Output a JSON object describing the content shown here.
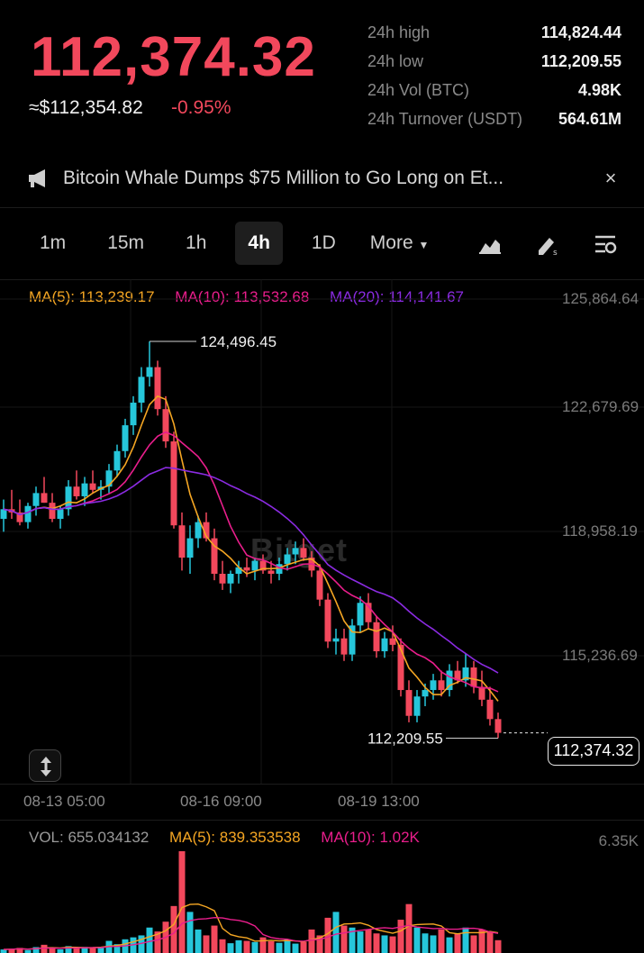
{
  "header": {
    "last_price": "112,374.32",
    "fiat_price": "≈$112,354.82",
    "change_pct": "-0.95%",
    "stats": [
      {
        "label": "24h high",
        "value": "114,824.44"
      },
      {
        "label": "24h low",
        "value": "112,209.55"
      },
      {
        "label": "24h Vol (BTC)",
        "value": "4.98K"
      },
      {
        "label": "24h Turnover (USDT)",
        "value": "564.61M"
      }
    ]
  },
  "news": {
    "text": "Bitcoin Whale Dumps $75 Million to Go Long on Et...",
    "close": "×"
  },
  "intervals": {
    "items": [
      "1m",
      "15m",
      "1h",
      "4h",
      "1D"
    ],
    "active": "4h",
    "more": "More"
  },
  "indicators": {
    "ma5": "MA(5): 113,239.17",
    "ma10": "MA(10): 113,532.68",
    "ma20": "MA(20): 114,141.67",
    "vol": "VOL: 655.034132",
    "vol_ma5": "MA(5): 839.353538",
    "vol_ma10": "MA(10): 1.02K",
    "vol_max": "6.35K"
  },
  "colors": {
    "up": "#26c6da",
    "down": "#f2485c",
    "ma5": "#f5a623",
    "ma10": "#e91e8c",
    "ma20": "#8b2be2"
  },
  "watermark": "Bitget",
  "chart_data": {
    "type": "candlestick",
    "y_axis_ticks": [
      "125,864.64",
      "122,679.69",
      "118,958.19",
      "115,236.69"
    ],
    "x_axis_ticks": [
      "08-13 05:00",
      "08-16 09:00",
      "08-19 13:00"
    ],
    "ylim": [
      110800,
      125864.64
    ],
    "high_marker": "124,496.45",
    "low_marker": "112,209.55",
    "current_price": "112,374.32",
    "current_value": 112374.32,
    "candles": [
      [
        119000,
        119600,
        118600,
        119300
      ],
      [
        119300,
        119900,
        119000,
        119200
      ],
      [
        119200,
        119600,
        118800,
        118900
      ],
      [
        118900,
        119500,
        118700,
        119400
      ],
      [
        119400,
        120000,
        119100,
        119800
      ],
      [
        119800,
        120300,
        119500,
        119500
      ],
      [
        119500,
        119800,
        118900,
        119000
      ],
      [
        119000,
        119400,
        118700,
        119300
      ],
      [
        119300,
        120200,
        119100,
        120000
      ],
      [
        120000,
        120500,
        119600,
        119700
      ],
      [
        119700,
        120300,
        119400,
        120100
      ],
      [
        120100,
        120500,
        119800,
        119900
      ],
      [
        119900,
        120200,
        119600,
        120000
      ],
      [
        120000,
        120700,
        119800,
        120500
      ],
      [
        120500,
        121300,
        120300,
        121100
      ],
      [
        121100,
        122100,
        120900,
        121900
      ],
      [
        121900,
        122800,
        121600,
        122600
      ],
      [
        122600,
        123700,
        122300,
        123400
      ],
      [
        123400,
        124496,
        123100,
        123700
      ],
      [
        123700,
        123900,
        122200,
        122400
      ],
      [
        122400,
        122800,
        121200,
        121400
      ],
      [
        121400,
        121700,
        118700,
        118800
      ],
      [
        118800,
        119200,
        117400,
        117800
      ],
      [
        117800,
        118800,
        117300,
        118400
      ],
      [
        118400,
        119100,
        118100,
        118900
      ],
      [
        118900,
        119200,
        118300,
        118400
      ],
      [
        118400,
        118700,
        117100,
        117300
      ],
      [
        117300,
        117700,
        116800,
        117000
      ],
      [
        117000,
        117400,
        116700,
        117300
      ],
      [
        117300,
        117700,
        117000,
        117500
      ],
      [
        117500,
        117800,
        117200,
        117400
      ],
      [
        117400,
        117800,
        117100,
        117700
      ],
      [
        117700,
        117900,
        117300,
        117400
      ],
      [
        117400,
        117700,
        117000,
        117300
      ],
      [
        117300,
        117800,
        117100,
        117600
      ],
      [
        117600,
        118100,
        117400,
        117900
      ],
      [
        117900,
        118300,
        117600,
        118100
      ],
      [
        118100,
        118400,
        117700,
        117800
      ],
      [
        117800,
        118000,
        117200,
        117400
      ],
      [
        117400,
        117600,
        116300,
        116500
      ],
      [
        116500,
        116700,
        115000,
        115200
      ],
      [
        115200,
        115600,
        114800,
        115300
      ],
      [
        115300,
        115600,
        114600,
        114800
      ],
      [
        114800,
        115900,
        114600,
        115700
      ],
      [
        115700,
        116600,
        115500,
        116400
      ],
      [
        116400,
        116700,
        115600,
        115800
      ],
      [
        115800,
        116000,
        114700,
        114900
      ],
      [
        114900,
        115500,
        114700,
        115300
      ],
      [
        115300,
        115700,
        114900,
        115100
      ],
      [
        115100,
        115300,
        113500,
        113700
      ],
      [
        113700,
        114000,
        112700,
        112900
      ],
      [
        112900,
        113700,
        112700,
        113500
      ],
      [
        113500,
        113900,
        113200,
        113700
      ],
      [
        113700,
        114200,
        113400,
        114000
      ],
      [
        114000,
        114300,
        113500,
        113700
      ],
      [
        113700,
        114500,
        113500,
        114300
      ],
      [
        114300,
        114600,
        113900,
        114000
      ],
      [
        114000,
        114825,
        113800,
        114400
      ],
      [
        114400,
        114600,
        113600,
        113800
      ],
      [
        113800,
        114300,
        113200,
        113400
      ],
      [
        113400,
        113800,
        112600,
        112800
      ],
      [
        112800,
        113000,
        112210,
        112374
      ]
    ],
    "volumes": [
      180,
      210,
      260,
      150,
      300,
      420,
      230,
      190,
      350,
      270,
      310,
      260,
      280,
      620,
      450,
      700,
      800,
      900,
      1300,
      1100,
      1600,
      2400,
      5200,
      2100,
      1200,
      900,
      1400,
      700,
      500,
      650,
      620,
      560,
      800,
      600,
      520,
      700,
      480,
      560,
      1200,
      900,
      1800,
      2100,
      1400,
      1300,
      1100,
      1200,
      1000,
      900,
      850,
      1700,
      2500,
      1300,
      1000,
      900,
      1200,
      800,
      1000,
      1300,
      900,
      1200,
      1100,
      655
    ]
  }
}
